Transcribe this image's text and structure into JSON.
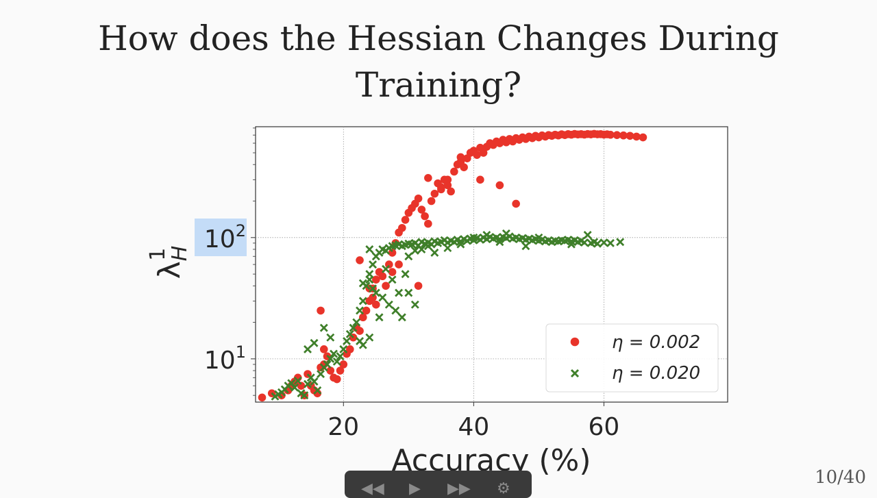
{
  "slide": {
    "title_line1": "How does the Hessian Changes During",
    "title_line2": "Training?",
    "page_number": "10/40"
  },
  "chart_data": {
    "type": "scatter",
    "title": "",
    "xlabel": "Accuracy (%)",
    "ylabel": "λ¹_H",
    "y_scale": "log",
    "xlim": [
      6.5,
      79
    ],
    "ylim": [
      4.4,
      820
    ],
    "x_ticks": [
      {
        "value": 20,
        "label": "20"
      },
      {
        "value": 40,
        "label": "40"
      },
      {
        "value": 60,
        "label": "60"
      }
    ],
    "y_ticks": [
      {
        "value": 10,
        "base": "10",
        "exp": "1"
      },
      {
        "value": 100,
        "base": "10",
        "exp": "2"
      }
    ],
    "grid": true,
    "legend_position": "lower-right",
    "series": [
      {
        "name": "η = 0.002",
        "marker": "circle",
        "color": "#e8342a",
        "points": [
          [
            7.5,
            4.8
          ],
          [
            9,
            5.2
          ],
          [
            10.5,
            5
          ],
          [
            11.5,
            5.5
          ],
          [
            12,
            6
          ],
          [
            12.5,
            6.5
          ],
          [
            13,
            7
          ],
          [
            13.5,
            6
          ],
          [
            14,
            5
          ],
          [
            14.5,
            7.5
          ],
          [
            15,
            6
          ],
          [
            15.5,
            5.5
          ],
          [
            16,
            5.2
          ],
          [
            16.5,
            8.5
          ],
          [
            17,
            9
          ],
          [
            17.5,
            10.5
          ],
          [
            18,
            8
          ],
          [
            18.5,
            7
          ],
          [
            19,
            6.8
          ],
          [
            20,
            9
          ],
          [
            20.5,
            11
          ],
          [
            21,
            12
          ],
          [
            21.5,
            15
          ],
          [
            22,
            18
          ],
          [
            22.5,
            17
          ],
          [
            23,
            22
          ],
          [
            23.5,
            25
          ],
          [
            24,
            30
          ],
          [
            24.5,
            38
          ],
          [
            25,
            45
          ],
          [
            25.5,
            52
          ],
          [
            26,
            48
          ],
          [
            26.5,
            40
          ],
          [
            27,
            60
          ],
          [
            27.5,
            75
          ],
          [
            28,
            90
          ],
          [
            28.5,
            110
          ],
          [
            29,
            120
          ],
          [
            29.5,
            140
          ],
          [
            30,
            160
          ],
          [
            30.5,
            175
          ],
          [
            31,
            190
          ],
          [
            31.5,
            210
          ],
          [
            32,
            170
          ],
          [
            32.5,
            150
          ],
          [
            33,
            130
          ],
          [
            33.5,
            200
          ],
          [
            34,
            230
          ],
          [
            34.5,
            280
          ],
          [
            35,
            250
          ],
          [
            35.5,
            300
          ],
          [
            36,
            270
          ],
          [
            36.5,
            240
          ],
          [
            37,
            350
          ],
          [
            37.5,
            400
          ],
          [
            38,
            420
          ],
          [
            38.5,
            380
          ],
          [
            39,
            450
          ],
          [
            39.5,
            500
          ],
          [
            40,
            520
          ],
          [
            40.5,
            480
          ],
          [
            41,
            550
          ],
          [
            41.5,
            500
          ],
          [
            42,
            560
          ],
          [
            42.5,
            600
          ],
          [
            43,
            580
          ],
          [
            43.5,
            620
          ],
          [
            44,
            600
          ],
          [
            44.5,
            640
          ],
          [
            45,
            610
          ],
          [
            45.5,
            650
          ],
          [
            46,
            620
          ],
          [
            46.5,
            660
          ],
          [
            47,
            640
          ],
          [
            47.5,
            670
          ],
          [
            48,
            650
          ],
          [
            48.5,
            680
          ],
          [
            49,
            660
          ],
          [
            49.5,
            690
          ],
          [
            50,
            670
          ],
          [
            50.5,
            695
          ],
          [
            51,
            680
          ],
          [
            51.5,
            700
          ],
          [
            52,
            690
          ],
          [
            52.5,
            705
          ],
          [
            53,
            695
          ],
          [
            53.5,
            710
          ],
          [
            54,
            700
          ],
          [
            54.5,
            712
          ],
          [
            55,
            705
          ],
          [
            55.5,
            715
          ],
          [
            56,
            708
          ],
          [
            56.5,
            712
          ],
          [
            57,
            706
          ],
          [
            57.5,
            714
          ],
          [
            58,
            709
          ],
          [
            58.5,
            716
          ],
          [
            59,
            710
          ],
          [
            59.5,
            712
          ],
          [
            60,
            706
          ],
          [
            60.5,
            710
          ],
          [
            61,
            704
          ],
          [
            62,
            700
          ],
          [
            63,
            695
          ],
          [
            64,
            690
          ],
          [
            65,
            680
          ],
          [
            66,
            670
          ],
          [
            16.5,
            25
          ],
          [
            24,
            38
          ],
          [
            24.5,
            32
          ],
          [
            31.5,
            40
          ],
          [
            46.5,
            190
          ],
          [
            38,
            460
          ],
          [
            41,
            300
          ],
          [
            44,
            270
          ],
          [
            36,
            300
          ],
          [
            35,
            260
          ],
          [
            33,
            310
          ],
          [
            22.5,
            65
          ],
          [
            27.5,
            52
          ],
          [
            28.5,
            60
          ],
          [
            17,
            12
          ],
          [
            19.5,
            8
          ],
          [
            25,
            28
          ]
        ]
      },
      {
        "name": "η = 0.020",
        "marker": "x",
        "color": "#3f7f2a",
        "points": [
          [
            9.5,
            4.9
          ],
          [
            10,
            5.1
          ],
          [
            10.5,
            5.3
          ],
          [
            11,
            5.6
          ],
          [
            11.5,
            6
          ],
          [
            12,
            6.3
          ],
          [
            12.5,
            5.8
          ],
          [
            13,
            6.6
          ],
          [
            13.5,
            5.2
          ],
          [
            14,
            5
          ],
          [
            14.5,
            6.2
          ],
          [
            15,
            7
          ],
          [
            15.5,
            6.5
          ],
          [
            16,
            5.5
          ],
          [
            16.5,
            7.5
          ],
          [
            17,
            8.5
          ],
          [
            17.5,
            9
          ],
          [
            18,
            10
          ],
          [
            18.5,
            11
          ],
          [
            19,
            9.5
          ],
          [
            19.5,
            10.5
          ],
          [
            20,
            12
          ],
          [
            20.5,
            14
          ],
          [
            21,
            16
          ],
          [
            21.5,
            18
          ],
          [
            22,
            20
          ],
          [
            22.5,
            25
          ],
          [
            23,
            30
          ],
          [
            23.5,
            40
          ],
          [
            24,
            50
          ],
          [
            24.5,
            60
          ],
          [
            25,
            70
          ],
          [
            25.5,
            75
          ],
          [
            26,
            80
          ],
          [
            26.5,
            78
          ],
          [
            27,
            82
          ],
          [
            27.5,
            85
          ],
          [
            28,
            86
          ],
          [
            28.5,
            88
          ],
          [
            29,
            85
          ],
          [
            29.5,
            87
          ],
          [
            30,
            89
          ],
          [
            30.5,
            88
          ],
          [
            31,
            90
          ],
          [
            31.5,
            86
          ],
          [
            32,
            92
          ],
          [
            32.5,
            89
          ],
          [
            33,
            91
          ],
          [
            33.5,
            88
          ],
          [
            34,
            93
          ],
          [
            34.5,
            90
          ],
          [
            35,
            92
          ],
          [
            35.5,
            95
          ],
          [
            36,
            91
          ],
          [
            36.5,
            94
          ],
          [
            37,
            92
          ],
          [
            37.5,
            96
          ],
          [
            38,
            93
          ],
          [
            38.5,
            97
          ],
          [
            39,
            94
          ],
          [
            39.5,
            98
          ],
          [
            40,
            95
          ],
          [
            40.5,
            99
          ],
          [
            41,
            96
          ],
          [
            41.5,
            100
          ],
          [
            42,
            97
          ],
          [
            42.5,
            101
          ],
          [
            43,
            98
          ],
          [
            43.5,
            100
          ],
          [
            44,
            97
          ],
          [
            44.5,
            101
          ],
          [
            45,
            99
          ],
          [
            45.5,
            102
          ],
          [
            46,
            98
          ],
          [
            46.5,
            100
          ],
          [
            47,
            97
          ],
          [
            47.5,
            99
          ],
          [
            48,
            96
          ],
          [
            48.5,
            98
          ],
          [
            49,
            95
          ],
          [
            49.5,
            97
          ],
          [
            50,
            94
          ],
          [
            50.5,
            96
          ],
          [
            51,
            93
          ],
          [
            51.5,
            95
          ],
          [
            52,
            92
          ],
          [
            52.5,
            94
          ],
          [
            53,
            93
          ],
          [
            53.5,
            95
          ],
          [
            54,
            94
          ],
          [
            54.5,
            96
          ],
          [
            55,
            93
          ],
          [
            55.5,
            95
          ],
          [
            56,
            92
          ],
          [
            56.5,
            94
          ],
          [
            57,
            91
          ],
          [
            57.5,
            105
          ],
          [
            58,
            90
          ],
          [
            58.5,
            92
          ],
          [
            59,
            89
          ],
          [
            60,
            91
          ],
          [
            61,
            90
          ],
          [
            62.5,
            92
          ],
          [
            24,
            45
          ],
          [
            24.5,
            38
          ],
          [
            25,
            35
          ],
          [
            26,
            32
          ],
          [
            27,
            28
          ],
          [
            28,
            25
          ],
          [
            29,
            22
          ],
          [
            25.5,
            22
          ],
          [
            24,
            15
          ],
          [
            23,
            13
          ],
          [
            22.5,
            14
          ],
          [
            15.5,
            13.5
          ],
          [
            17,
            18
          ],
          [
            14.5,
            12
          ],
          [
            18,
            15
          ],
          [
            29.5,
            50
          ],
          [
            30,
            35
          ],
          [
            31,
            28
          ],
          [
            23,
            42
          ],
          [
            26.5,
            55
          ],
          [
            27.5,
            45
          ],
          [
            28.5,
            35
          ],
          [
            24,
            80
          ],
          [
            30,
            70
          ],
          [
            32,
            80
          ],
          [
            34,
            75
          ],
          [
            36,
            82
          ],
          [
            40,
            100
          ],
          [
            42,
            105
          ],
          [
            45,
            108
          ],
          [
            50,
            100
          ],
          [
            55,
            88
          ],
          [
            48,
            85
          ],
          [
            38,
            88
          ],
          [
            33,
            85
          ],
          [
            31,
            78
          ],
          [
            44,
            92
          ]
        ]
      }
    ]
  },
  "video_controls": {
    "rewind_icon": "rewind-icon",
    "play_icon": "play-icon",
    "forward_icon": "fast-forward-icon",
    "settings_icon": "settings-icon",
    "rewind_glyph": "◀◀",
    "play_glyph": "▶",
    "forward_glyph": "▶▶",
    "settings_glyph": "⚙"
  }
}
